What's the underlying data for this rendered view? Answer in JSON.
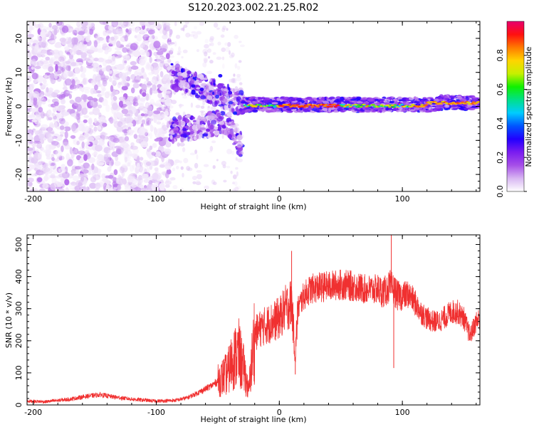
{
  "chart_data": [
    {
      "type": "heatmap",
      "title": "S120.2023.002.21.25.R02",
      "xlabel": "Height of straight line (km)",
      "ylabel": "Frequency (Hz)",
      "xlim": [
        -205,
        163
      ],
      "ylim": [
        -25,
        25
      ],
      "x_ticks": [
        "-200",
        "-100",
        "0",
        "100"
      ],
      "x_tick_values": [
        -200,
        -100,
        0,
        100
      ],
      "y_ticks": [
        "20",
        "10",
        "0",
        "-10",
        "-20"
      ],
      "y_tick_values": [
        20,
        10,
        0,
        -10,
        -20
      ],
      "colorbar": {
        "label": "Normalized spectral amplitude",
        "range": [
          0,
          1
        ],
        "ticks": [
          "0.0",
          "0.2",
          "0.4",
          "0.6",
          "0.8"
        ],
        "tick_values": [
          0.0,
          0.2,
          0.4,
          0.6,
          0.8
        ],
        "colormap": [
          "#ffffff",
          "#d8b6f2",
          "#a64fe8",
          "#7a1cf0",
          "#2200ff",
          "#0055ff",
          "#00ccff",
          "#00e08a",
          "#10f000",
          "#c6f000",
          "#ffd400",
          "#ff7a00",
          "#ff1010",
          "#e8006e"
        ]
      },
      "regions": [
        {
          "x_range": [
            -205,
            -88
          ],
          "y_range": [
            -25,
            25
          ],
          "description_level": "scattered low-amplitude noise"
        },
        {
          "x_range": [
            -88,
            -30
          ],
          "y_range": [
            -15,
            12
          ],
          "description_level": "split signal branches near +7 and -7 Hz"
        },
        {
          "x_range": [
            -30,
            163
          ],
          "y_range": [
            -1.5,
            2.5
          ],
          "description_level": "strong carrier near 0 Hz"
        }
      ]
    },
    {
      "type": "line",
      "title": "",
      "xlabel": "Height of straight line (km)",
      "ylabel": "SNR (10 * v/v)",
      "xlim": [
        -205,
        163
      ],
      "ylim": [
        0,
        530
      ],
      "x_ticks": [
        "-200",
        "-100",
        "0",
        "100"
      ],
      "x_tick_values": [
        -200,
        -100,
        0,
        100
      ],
      "y_ticks": [
        "0",
        "100",
        "200",
        "300",
        "400",
        "500"
      ],
      "y_tick_values": [
        0,
        100,
        200,
        300,
        400,
        500
      ],
      "color": "#f03030",
      "series": [
        {
          "x": [
            -205,
            -190,
            -170,
            -155,
            -145,
            -135,
            -120,
            -100,
            -85,
            -75,
            -65,
            -55,
            -48,
            -42,
            -38,
            -33,
            -28,
            -25,
            -20,
            -15,
            -10,
            -5,
            0,
            5,
            10,
            13,
            15,
            20,
            25,
            30,
            40,
            50,
            60,
            70,
            80,
            85,
            90,
            93,
            96,
            100,
            105,
            110,
            115,
            120,
            125,
            130,
            135,
            140,
            145,
            150,
            155,
            160,
            163
          ],
          "y": [
            12,
            10,
            18,
            28,
            32,
            25,
            18,
            12,
            14,
            22,
            40,
            60,
            80,
            100,
            140,
            160,
            100,
            40,
            220,
            240,
            250,
            260,
            270,
            300,
            320,
            150,
            300,
            340,
            360,
            365,
            370,
            375,
            370,
            360,
            360,
            350,
            370,
            360,
            340,
            340,
            345,
            320,
            290,
            270,
            260,
            260,
            275,
            290,
            290,
            270,
            215,
            260,
            270
          ]
        }
      ],
      "spikes": [
        {
          "x": 10,
          "y": 480
        },
        {
          "x": 13,
          "y": 95
        },
        {
          "x": 91,
          "y": 530
        },
        {
          "x": 93,
          "y": 115
        }
      ]
    }
  ]
}
